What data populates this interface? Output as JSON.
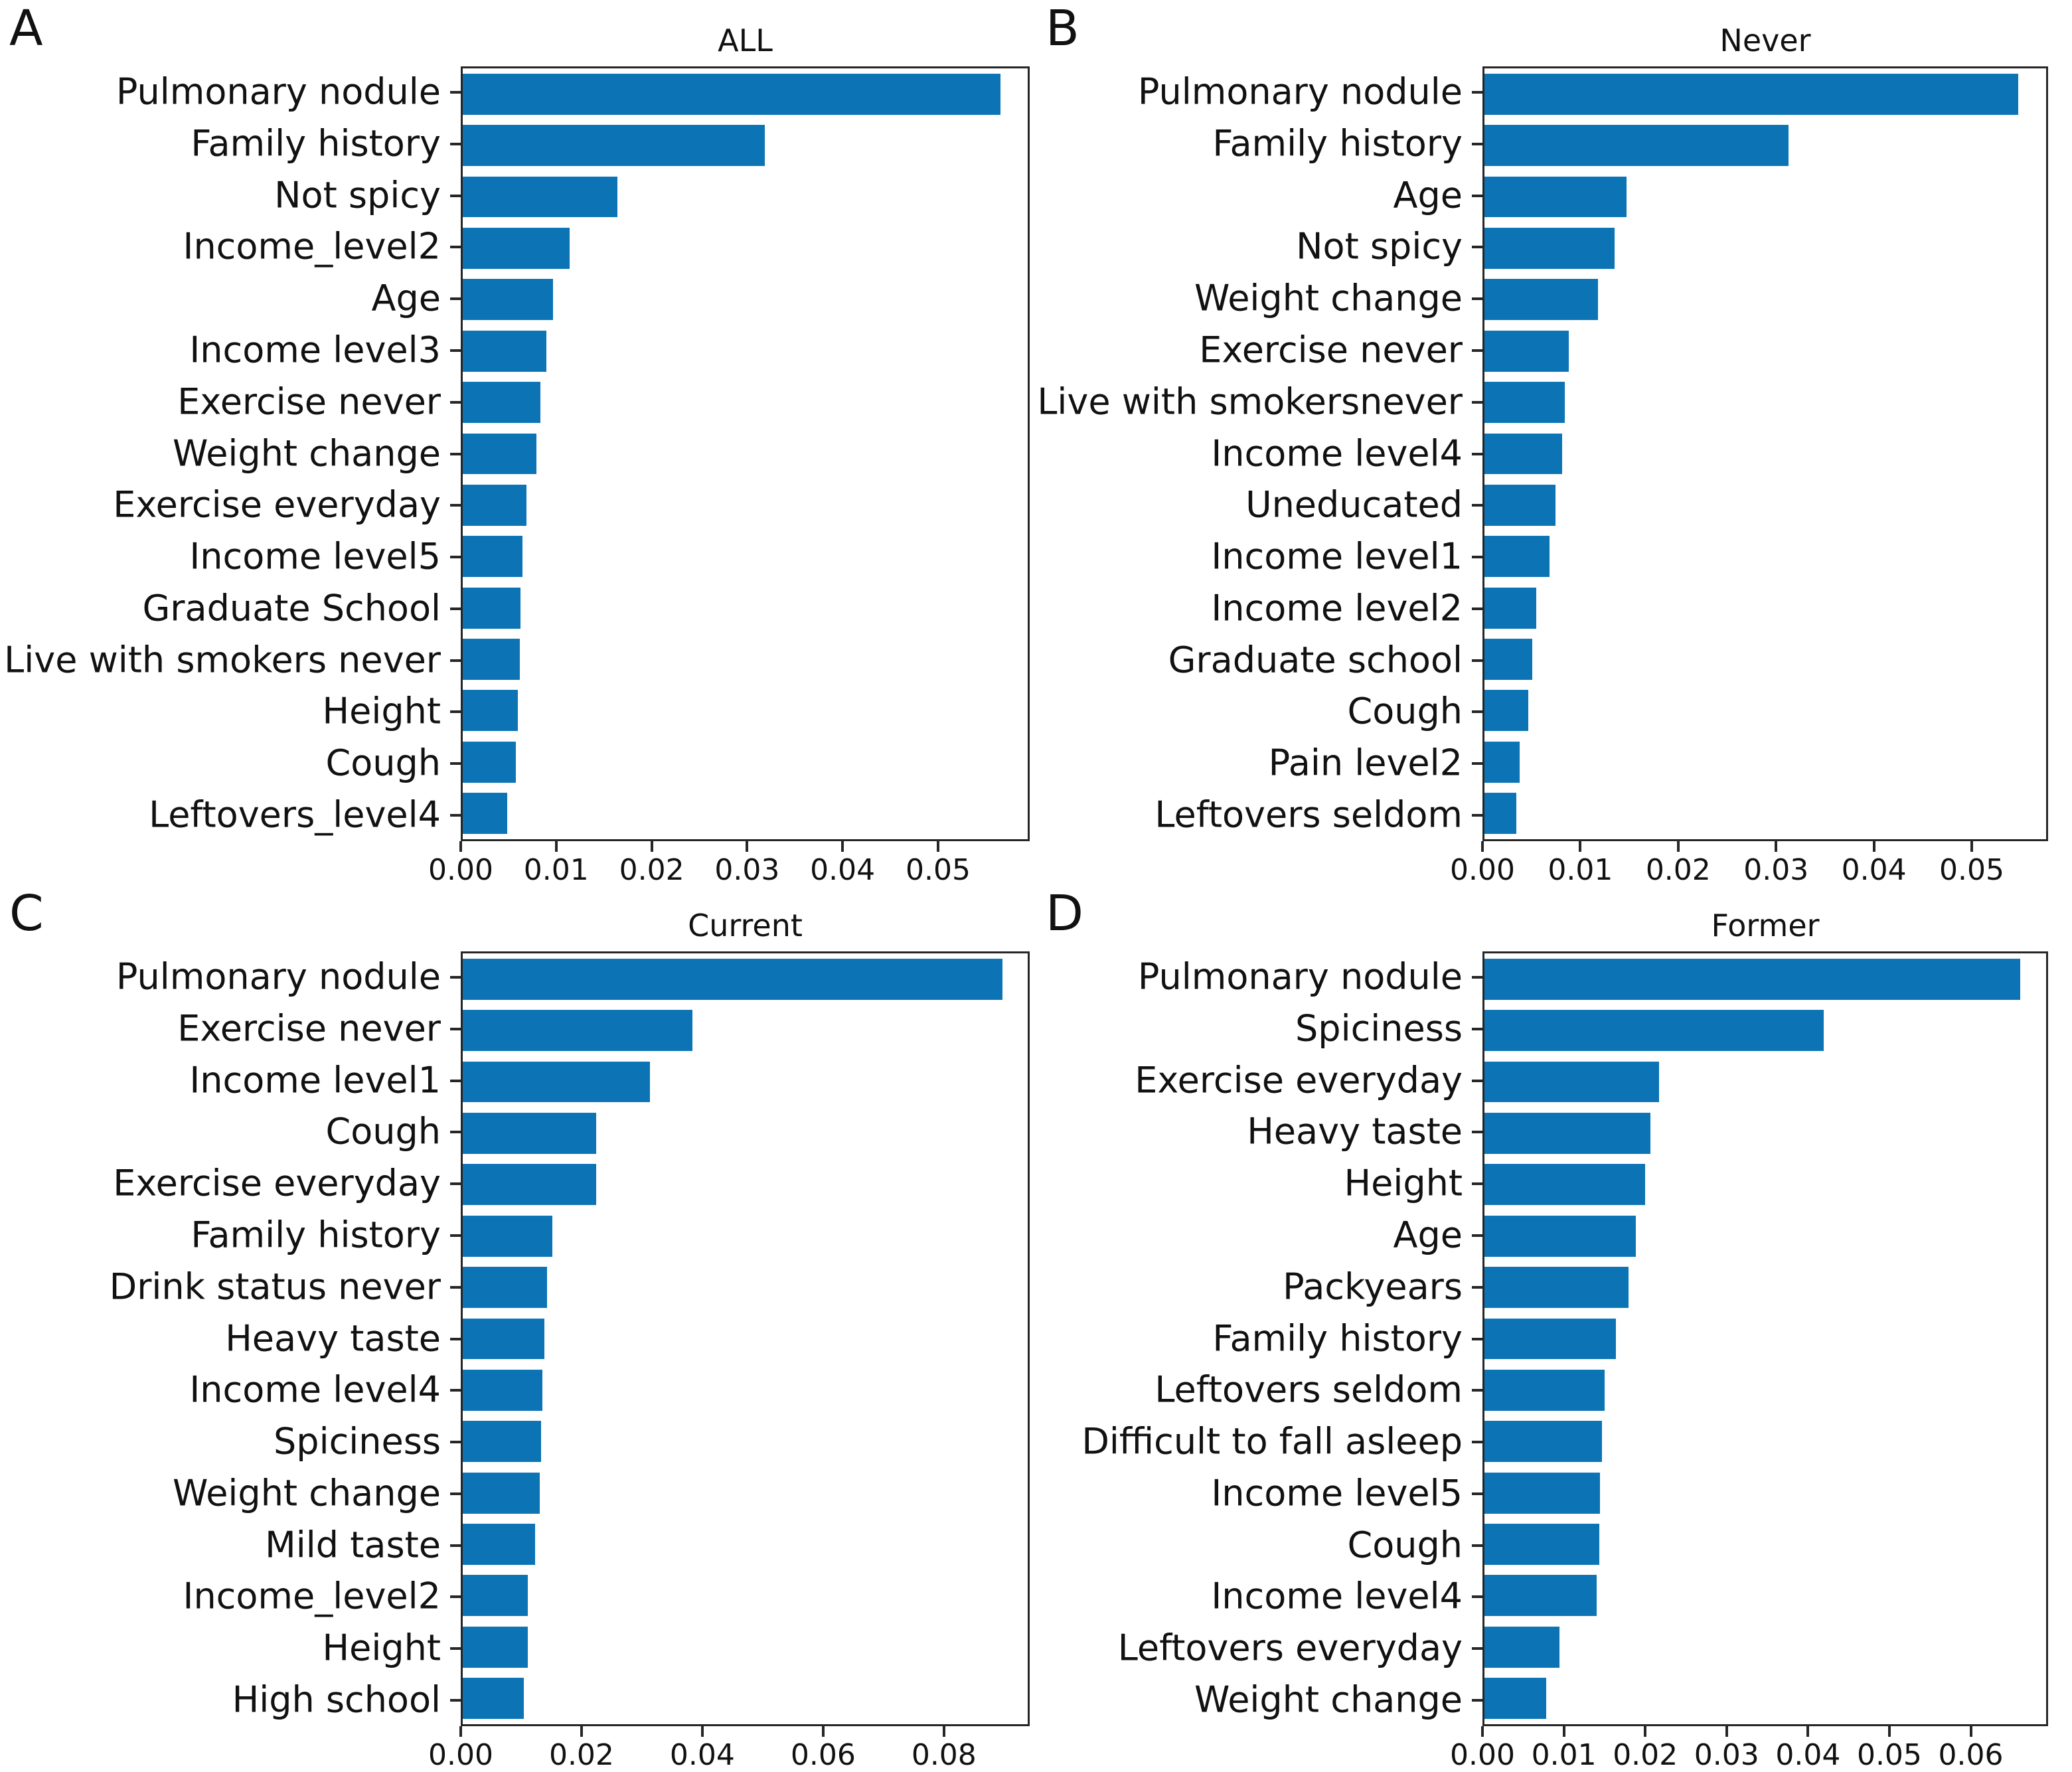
{
  "figure": {
    "background": "#ffffff",
    "bar_color": "#0c74b5",
    "axis_color": "#262626",
    "text_color": "#111111"
  },
  "chart_data": [
    {
      "id": "panel-a",
      "letter": "A",
      "type": "bar",
      "orientation": "horizontal",
      "title": "ALL",
      "legend": "none",
      "grid": "off",
      "categories": [
        "Pulmonary nodule",
        "Family history",
        "Not spicy",
        "Income_level2",
        "Age",
        "Income level3",
        "Exercise never",
        "Weight change",
        "Exercise everyday",
        "Income level5",
        "Graduate School",
        "Live with smokers never",
        "Height",
        "Cough",
        "Leftovers_level4"
      ],
      "values": [
        0.0567,
        0.0319,
        0.0163,
        0.0113,
        0.0095,
        0.0088,
        0.0082,
        0.0078,
        0.0067,
        0.0063,
        0.0061,
        0.006,
        0.0058,
        0.0056,
        0.0047
      ],
      "xlabel": "",
      "ylabel": "",
      "xlim": [
        0,
        0.0596
      ],
      "xticks": [
        0,
        0.01,
        0.02,
        0.03,
        0.04,
        0.05
      ]
    },
    {
      "id": "panel-b",
      "letter": "B",
      "type": "bar",
      "orientation": "horizontal",
      "title": "Never",
      "legend": "none",
      "grid": "off",
      "categories": [
        "Pulmonary nodule",
        "Family history",
        "Age",
        "Not spicy",
        "Weight change",
        "Exercise never",
        "Live with smokersnever",
        "Income level4",
        "Uneducated",
        "Income level1",
        "Income level2",
        "Graduate school",
        "Cough",
        "Pain level2",
        "Leftovers seldom"
      ],
      "values": [
        0.0549,
        0.0313,
        0.0146,
        0.0134,
        0.0117,
        0.0087,
        0.0083,
        0.008,
        0.0073,
        0.0067,
        0.0053,
        0.0049,
        0.0045,
        0.0036,
        0.0033
      ],
      "xlabel": "",
      "ylabel": "",
      "xlim": [
        0,
        0.0578
      ],
      "xticks": [
        0,
        0.01,
        0.02,
        0.03,
        0.04,
        0.05
      ]
    },
    {
      "id": "panel-c",
      "letter": "C",
      "type": "bar",
      "orientation": "horizontal",
      "title": "Current",
      "legend": "none",
      "grid": "off",
      "categories": [
        "Pulmonary nodule",
        "Exercise never",
        "Income level1",
        "Cough",
        "Exercise everyday",
        "Family history",
        "Drink status never",
        "Heavy taste",
        "Income level4",
        "Spiciness",
        "Weight change",
        "Mild taste",
        "Income_level2",
        "Height",
        "High school"
      ],
      "values": [
        0.09,
        0.0383,
        0.0312,
        0.0223,
        0.0222,
        0.0149,
        0.0141,
        0.0136,
        0.0133,
        0.0131,
        0.0128,
        0.0121,
        0.0109,
        0.0108,
        0.0102
      ],
      "xlabel": "",
      "ylabel": "",
      "xlim": [
        0,
        0.0942
      ],
      "xticks": [
        0,
        0.02,
        0.04,
        0.06,
        0.08
      ]
    },
    {
      "id": "panel-d",
      "letter": "D",
      "type": "bar",
      "orientation": "horizontal",
      "title": "Former",
      "legend": "none",
      "grid": "off",
      "categories": [
        "Pulmonary nodule",
        "Spiciness",
        "Exercise everyday",
        "Heavy taste",
        "Height",
        "Age",
        "Packyears",
        "Family history",
        "Leftovers seldom",
        "Difficult to fall asleep",
        "Income level5",
        "Cough",
        "Income level4",
        "Leftovers everyday",
        "Weight change"
      ],
      "values": [
        0.0663,
        0.042,
        0.0216,
        0.0205,
        0.0199,
        0.0187,
        0.0178,
        0.0163,
        0.0149,
        0.0145,
        0.0143,
        0.0142,
        0.0139,
        0.0093,
        0.0076
      ],
      "xlabel": "",
      "ylabel": "",
      "xlim": [
        0,
        0.0695
      ],
      "xticks": [
        0,
        0.01,
        0.02,
        0.03,
        0.04,
        0.05,
        0.06
      ]
    }
  ]
}
